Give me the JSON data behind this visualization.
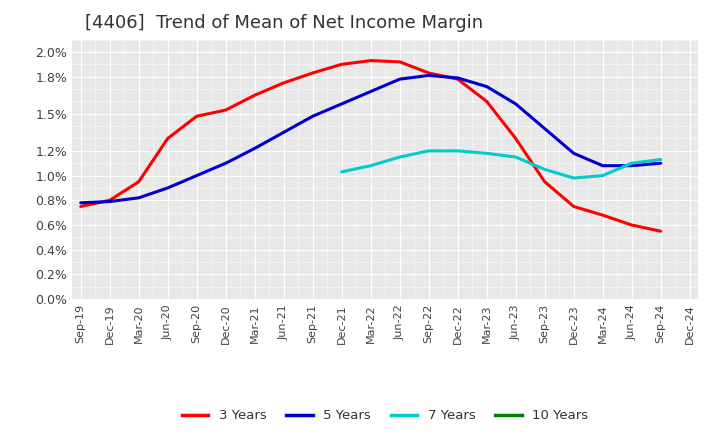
{
  "title": "[4406]  Trend of Mean of Net Income Margin",
  "title_fontsize": 13,
  "background_color": "#ffffff",
  "plot_bg_color": "#e8e8e8",
  "grid_color": "#ffffff",
  "ylim": [
    0.0,
    0.021
  ],
  "series": {
    "3 Years": {
      "color": "#ff0000",
      "linewidth": 2.2,
      "data": [
        [
          "Sep-19",
          0.0075
        ],
        [
          "Dec-19",
          0.008
        ],
        [
          "Mar-20",
          0.0095
        ],
        [
          "Jun-20",
          0.013
        ],
        [
          "Sep-20",
          0.0148
        ],
        [
          "Dec-20",
          0.0153
        ],
        [
          "Mar-21",
          0.0165
        ],
        [
          "Jun-21",
          0.0175
        ],
        [
          "Sep-21",
          0.0183
        ],
        [
          "Dec-21",
          0.019
        ],
        [
          "Mar-22",
          0.0193
        ],
        [
          "Jun-22",
          0.0192
        ],
        [
          "Sep-22",
          0.0183
        ],
        [
          "Dec-22",
          0.0178
        ],
        [
          "Mar-23",
          0.016
        ],
        [
          "Jun-23",
          0.013
        ],
        [
          "Sep-23",
          0.0095
        ],
        [
          "Dec-23",
          0.0075
        ],
        [
          "Mar-24",
          0.0068
        ],
        [
          "Jun-24",
          0.006
        ],
        [
          "Sep-24",
          0.0055
        ]
      ]
    },
    "5 Years": {
      "color": "#0000cc",
      "linewidth": 2.2,
      "data": [
        [
          "Sep-19",
          0.0078
        ],
        [
          "Dec-19",
          0.0079
        ],
        [
          "Mar-20",
          0.0082
        ],
        [
          "Jun-20",
          0.009
        ],
        [
          "Sep-20",
          0.01
        ],
        [
          "Dec-20",
          0.011
        ],
        [
          "Mar-21",
          0.0122
        ],
        [
          "Jun-21",
          0.0135
        ],
        [
          "Sep-21",
          0.0148
        ],
        [
          "Dec-21",
          0.0158
        ],
        [
          "Mar-22",
          0.0168
        ],
        [
          "Jun-22",
          0.0178
        ],
        [
          "Sep-22",
          0.0181
        ],
        [
          "Dec-22",
          0.0179
        ],
        [
          "Mar-23",
          0.0172
        ],
        [
          "Jun-23",
          0.0158
        ],
        [
          "Sep-23",
          0.0138
        ],
        [
          "Dec-23",
          0.0118
        ],
        [
          "Mar-24",
          0.0108
        ],
        [
          "Jun-24",
          0.0108
        ],
        [
          "Sep-24",
          0.011
        ]
      ]
    },
    "7 Years": {
      "color": "#00cccc",
      "linewidth": 2.2,
      "data": [
        [
          "Dec-21",
          0.0103
        ],
        [
          "Mar-22",
          0.0108
        ],
        [
          "Jun-22",
          0.0115
        ],
        [
          "Sep-22",
          0.012
        ],
        [
          "Dec-22",
          0.012
        ],
        [
          "Mar-23",
          0.0118
        ],
        [
          "Jun-23",
          0.0115
        ],
        [
          "Sep-23",
          0.0105
        ],
        [
          "Dec-23",
          0.0098
        ],
        [
          "Mar-24",
          0.01
        ],
        [
          "Jun-24",
          0.011
        ],
        [
          "Sep-24",
          0.0113
        ]
      ]
    },
    "10 Years": {
      "color": "#008000",
      "linewidth": 2.2,
      "data": []
    }
  },
  "xtick_labels": [
    "Sep-19",
    "Dec-19",
    "Mar-20",
    "Jun-20",
    "Sep-20",
    "Dec-20",
    "Mar-21",
    "Jun-21",
    "Sep-21",
    "Dec-21",
    "Mar-22",
    "Jun-22",
    "Sep-22",
    "Dec-22",
    "Mar-23",
    "Jun-23",
    "Sep-23",
    "Dec-23",
    "Mar-24",
    "Jun-24",
    "Sep-24",
    "Dec-24"
  ],
  "legend_items": [
    {
      "label": "3 Years",
      "color": "#ff0000"
    },
    {
      "label": "5 Years",
      "color": "#0000cc"
    },
    {
      "label": "7 Years",
      "color": "#00cccc"
    },
    {
      "label": "10 Years",
      "color": "#008000"
    }
  ]
}
